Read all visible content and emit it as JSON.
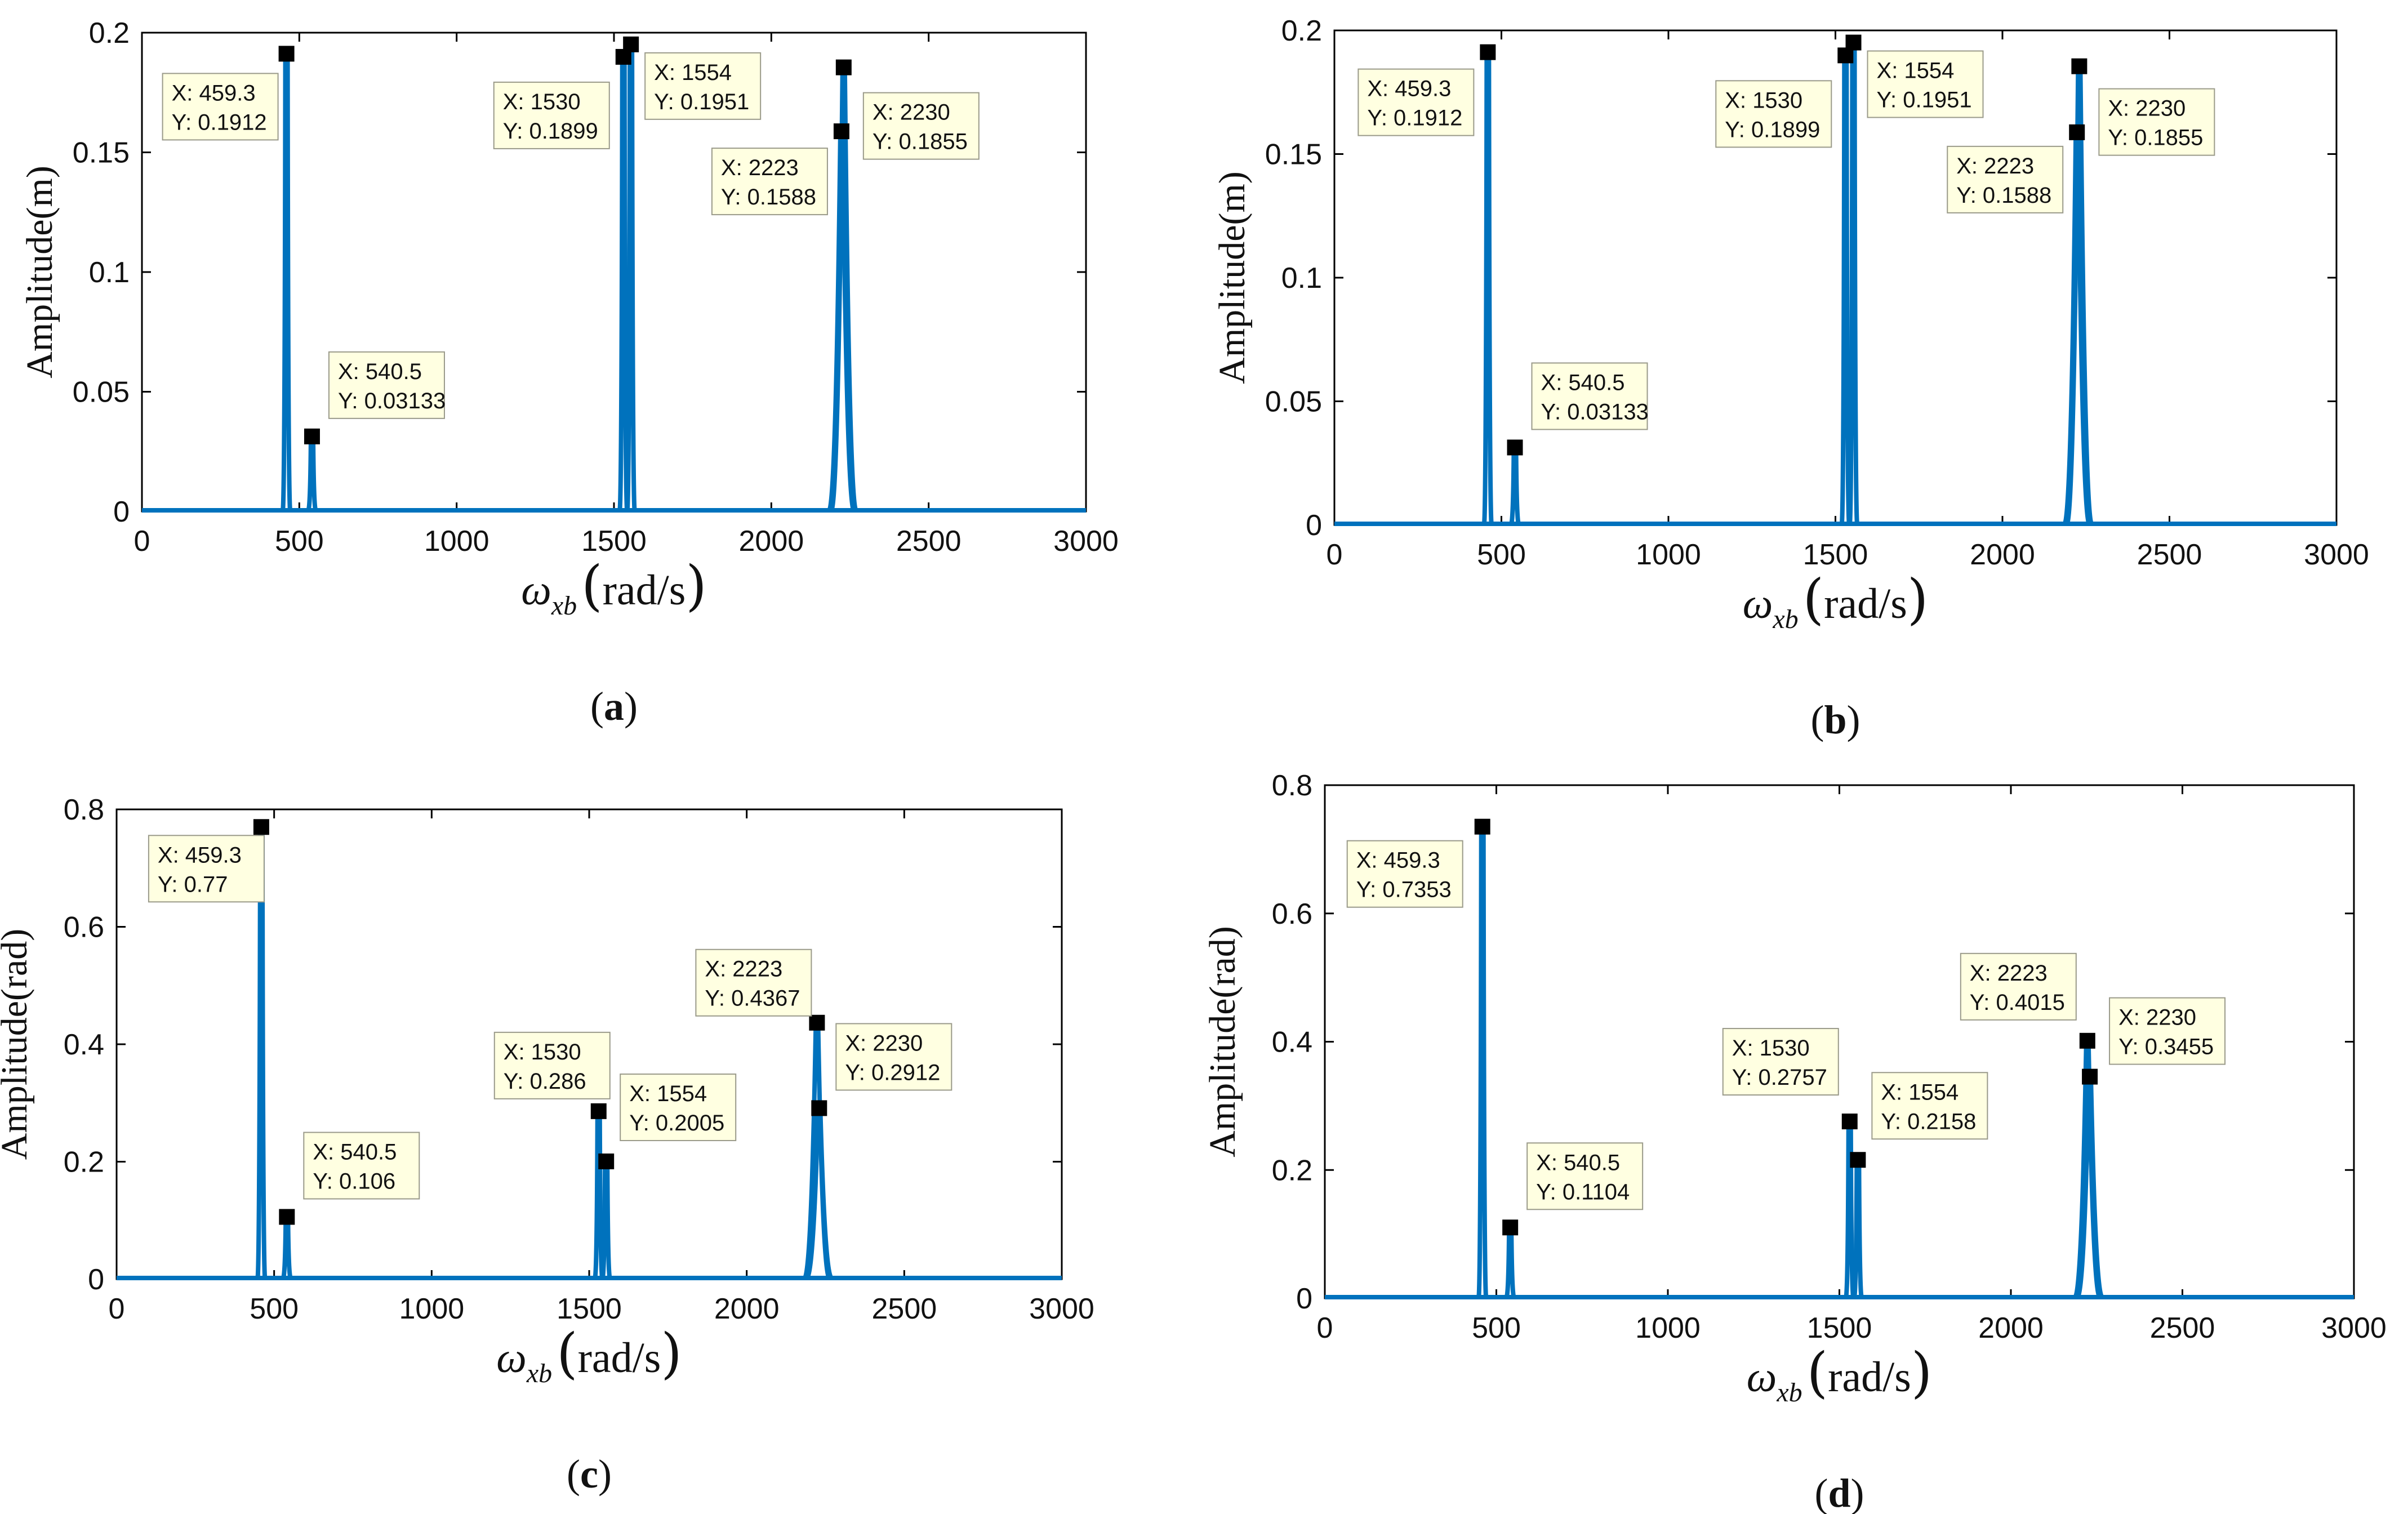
{
  "chart_data": [
    {
      "type": "line",
      "panel_label": "a",
      "xlabel": {
        "symbol": "ω",
        "subscript": "xb",
        "unit": "rad/s"
      },
      "ylabel": "Amplitude(m)",
      "xlim": [
        0,
        3000
      ],
      "ylim": [
        0,
        0.2
      ],
      "xticks": [
        "0",
        "500",
        "1000",
        "1500",
        "2000",
        "2500",
        "3000"
      ],
      "yticks": [
        "0",
        "0.05",
        "0.1",
        "0.15",
        "0.2"
      ],
      "grid": false,
      "series": [
        {
          "name": "amplitude",
          "color": "#0072bd"
        }
      ],
      "peaks": [
        {
          "x": 459.3,
          "y": 0.1912,
          "label_x": "X: 459.3",
          "label_y": "Y: 0.1912"
        },
        {
          "x": 540.5,
          "y": 0.03133,
          "label_x": "X: 540.5",
          "label_y": "Y: 0.03133"
        },
        {
          "x": 1530,
          "y": 0.1899,
          "label_x": "X: 1530",
          "label_y": "Y: 0.1899"
        },
        {
          "x": 1554,
          "y": 0.1951,
          "label_x": "X: 1554",
          "label_y": "Y: 0.1951"
        },
        {
          "x": 2223,
          "y": 0.1588,
          "label_x": "X: 2223",
          "label_y": "Y: 0.1588"
        },
        {
          "x": 2230,
          "y": 0.1855,
          "label_x": "X: 2230",
          "label_y": "Y: 0.1855"
        }
      ]
    },
    {
      "type": "line",
      "panel_label": "b",
      "xlabel": {
        "symbol": "ω",
        "subscript": "xb",
        "unit": "rad/s"
      },
      "ylabel": "Amplitude(m)",
      "xlim": [
        0,
        3000
      ],
      "ylim": [
        0,
        0.2
      ],
      "xticks": [
        "0",
        "500",
        "1000",
        "1500",
        "2000",
        "2500",
        "3000"
      ],
      "yticks": [
        "0",
        "0.05",
        "0.1",
        "0.15",
        "0.2"
      ],
      "grid": false,
      "series": [
        {
          "name": "amplitude",
          "color": "#0072bd"
        }
      ],
      "peaks": [
        {
          "x": 459.3,
          "y": 0.1912,
          "label_x": "X: 459.3",
          "label_y": "Y: 0.1912"
        },
        {
          "x": 540.5,
          "y": 0.03133,
          "label_x": "X: 540.5",
          "label_y": "Y: 0.03133"
        },
        {
          "x": 1530,
          "y": 0.1899,
          "label_x": "X: 1530",
          "label_y": "Y: 0.1899"
        },
        {
          "x": 1554,
          "y": 0.1951,
          "label_x": "X: 1554",
          "label_y": "Y: 0.1951"
        },
        {
          "x": 2223,
          "y": 0.1588,
          "label_x": "X: 2223",
          "label_y": "Y: 0.1588"
        },
        {
          "x": 2230,
          "y": 0.1855,
          "label_x": "X: 2230",
          "label_y": "Y: 0.1855"
        }
      ]
    },
    {
      "type": "line",
      "panel_label": "c",
      "xlabel": {
        "symbol": "ω",
        "subscript": "xb",
        "unit": "rad/s"
      },
      "ylabel": "Amplitude(rad)",
      "xlim": [
        0,
        3000
      ],
      "ylim": [
        0,
        0.8
      ],
      "xticks": [
        "0",
        "500",
        "1000",
        "1500",
        "2000",
        "2500",
        "3000"
      ],
      "yticks": [
        "0",
        "0.2",
        "0.4",
        "0.6",
        "0.8"
      ],
      "grid": false,
      "series": [
        {
          "name": "amplitude",
          "color": "#0072bd"
        }
      ],
      "peaks": [
        {
          "x": 459.3,
          "y": 0.77,
          "label_x": "X: 459.3",
          "label_y": "Y: 0.77"
        },
        {
          "x": 540.5,
          "y": 0.106,
          "label_x": "X: 540.5",
          "label_y": "Y: 0.106"
        },
        {
          "x": 1530,
          "y": 0.286,
          "label_x": "X: 1530",
          "label_y": "Y: 0.286"
        },
        {
          "x": 1554,
          "y": 0.2005,
          "label_x": "X: 1554",
          "label_y": "Y: 0.2005"
        },
        {
          "x": 2223,
          "y": 0.4367,
          "label_x": "X: 2223",
          "label_y": "Y: 0.4367"
        },
        {
          "x": 2230,
          "y": 0.2912,
          "label_x": "X: 2230",
          "label_y": "Y: 0.2912"
        }
      ]
    },
    {
      "type": "line",
      "panel_label": "d",
      "xlabel": {
        "symbol": "ω",
        "subscript": "xb",
        "unit": "rad/s"
      },
      "ylabel": "Amplitude(rad)",
      "xlim": [
        0,
        3000
      ],
      "ylim": [
        0,
        0.8
      ],
      "xticks": [
        "0",
        "500",
        "1000",
        "1500",
        "2000",
        "2500",
        "3000"
      ],
      "yticks": [
        "0",
        "0.2",
        "0.4",
        "0.6",
        "0.8"
      ],
      "grid": false,
      "series": [
        {
          "name": "amplitude",
          "color": "#0072bd"
        }
      ],
      "peaks": [
        {
          "x": 459.3,
          "y": 0.7353,
          "label_x": "X: 459.3",
          "label_y": "Y: 0.7353"
        },
        {
          "x": 540.5,
          "y": 0.1104,
          "label_x": "X: 540.5",
          "label_y": "Y: 0.1104"
        },
        {
          "x": 1530,
          "y": 0.2757,
          "label_x": "X: 1530",
          "label_y": "Y: 0.2757"
        },
        {
          "x": 1554,
          "y": 0.2158,
          "label_x": "X: 1554",
          "label_y": "Y: 0.2158"
        },
        {
          "x": 2223,
          "y": 0.4015,
          "label_x": "X: 2223",
          "label_y": "Y: 0.4015"
        },
        {
          "x": 2230,
          "y": 0.3455,
          "label_x": "X: 2230",
          "label_y": "Y: 0.3455"
        }
      ]
    }
  ]
}
